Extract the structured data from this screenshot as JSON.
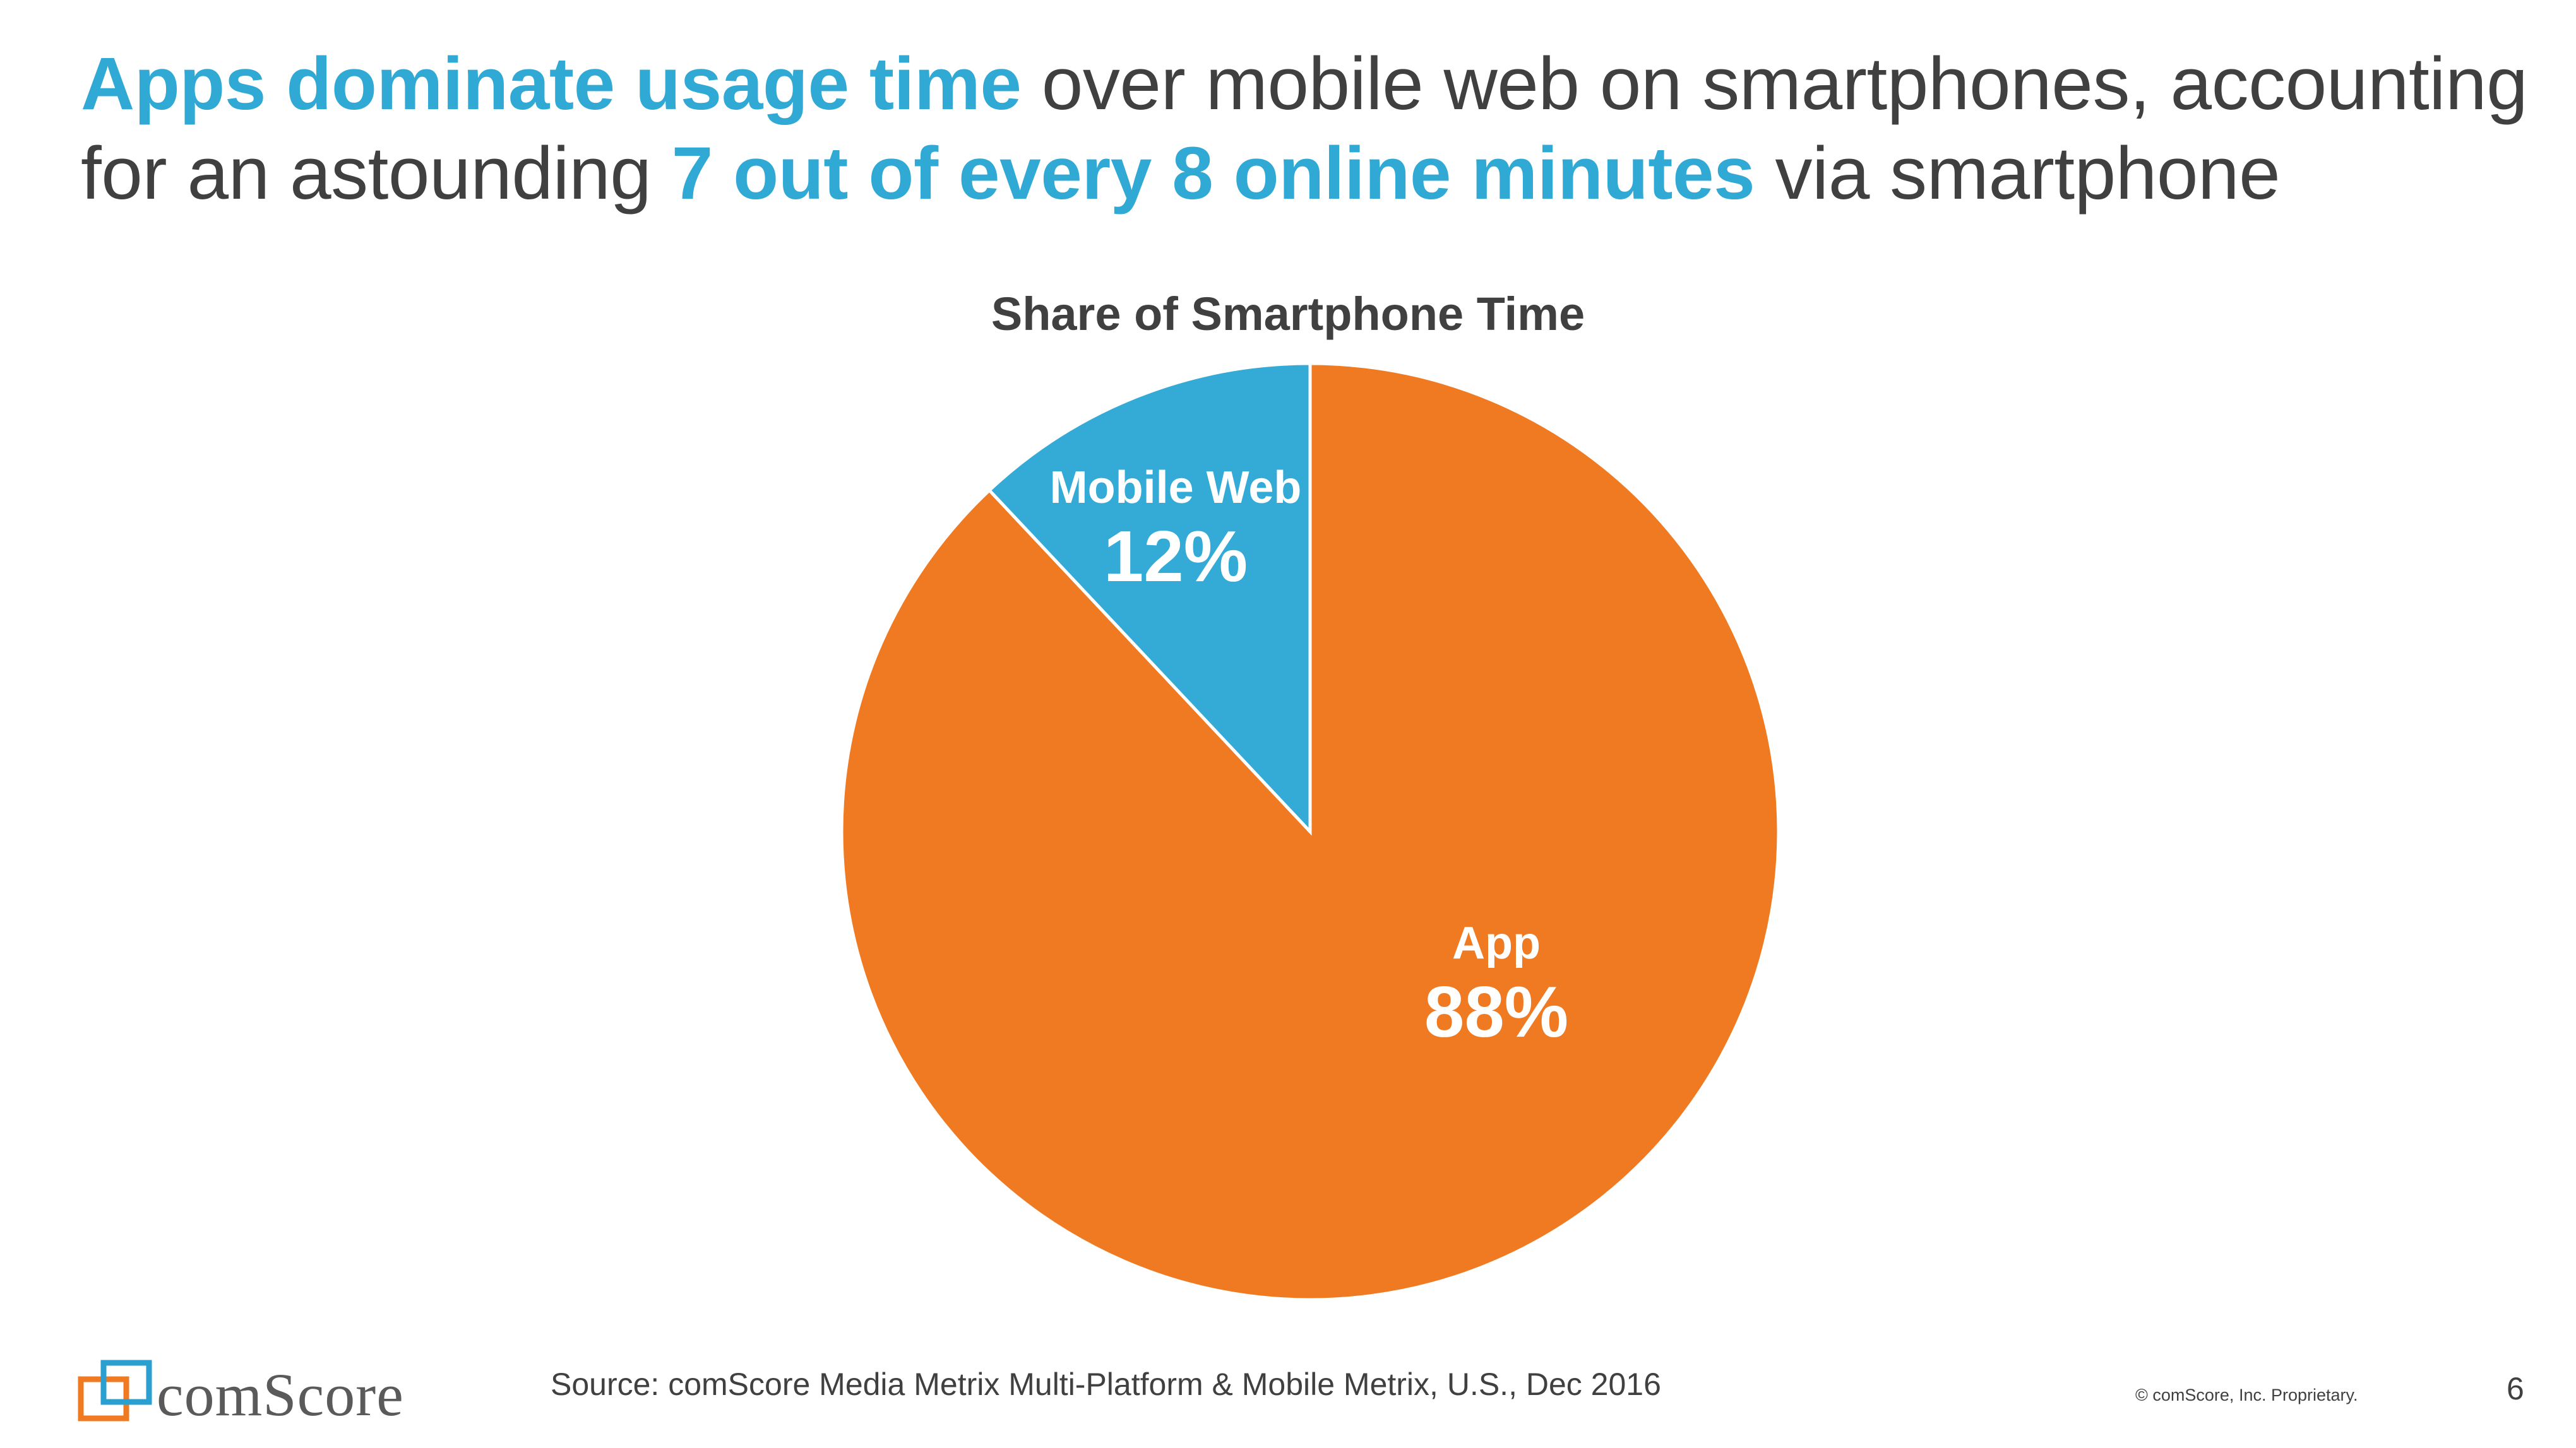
{
  "headline": {
    "line1_highlight": "Apps dominate usage time",
    "line1_rest": " over mobile web on smartphones, accounting",
    "line2_start": "for an astounding ",
    "line2_highlight": "7 out of every 8 online minutes",
    "line2_end": " via smartphone"
  },
  "chart_data": {
    "type": "pie",
    "title": "Share of Smartphone Time",
    "slices": [
      {
        "label": "App",
        "value": 88,
        "value_label": "88%",
        "color": "#f07a21"
      },
      {
        "label": "Mobile Web",
        "value": 12,
        "value_label": "12%",
        "color": "#33abd6"
      }
    ]
  },
  "footer": {
    "logo_text": "comScore",
    "source": "Source: comScore Media Metrix Multi-Platform & Mobile Metrix, U.S., Dec 2016",
    "copyright": "© comScore, Inc. Proprietary.",
    "page_number": "6"
  },
  "colors": {
    "accent": "#30a9d4",
    "app_orange": "#f07a21",
    "web_blue": "#33abd6",
    "text": "#404040",
    "logo_orange": "#f07a21",
    "logo_blue": "#2a9fd0"
  }
}
